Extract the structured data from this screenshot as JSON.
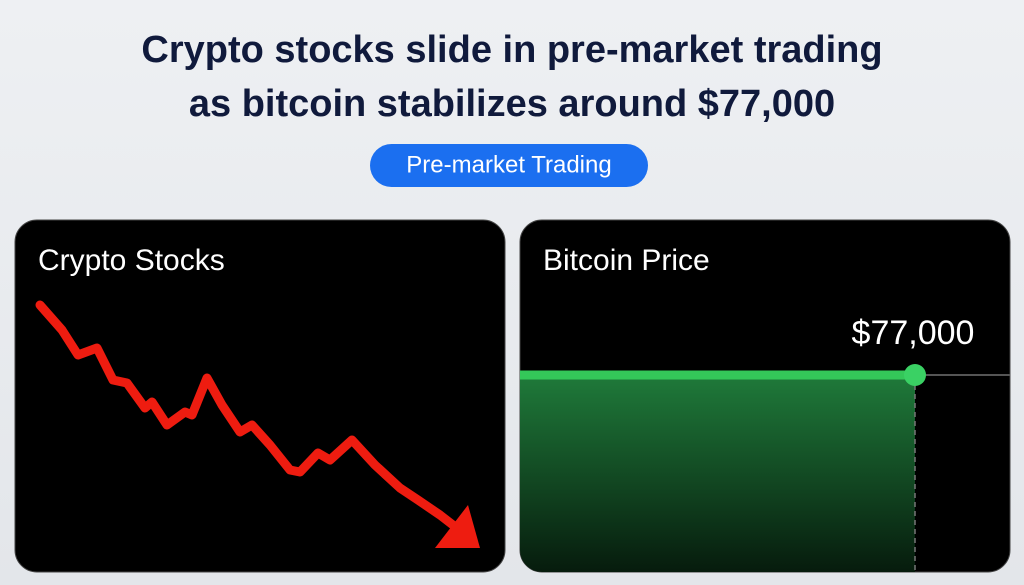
{
  "header": {
    "title": [
      "Crypto stocks slide in pre-market trading",
      "as bitcoin stabilizes around $77,000"
    ],
    "badge": "Pre-market Trading"
  },
  "panels": [
    {
      "title": "Crypto Stocks"
    },
    {
      "title": "Bitcoin Price",
      "price_label": "$77,000"
    }
  ]
}
